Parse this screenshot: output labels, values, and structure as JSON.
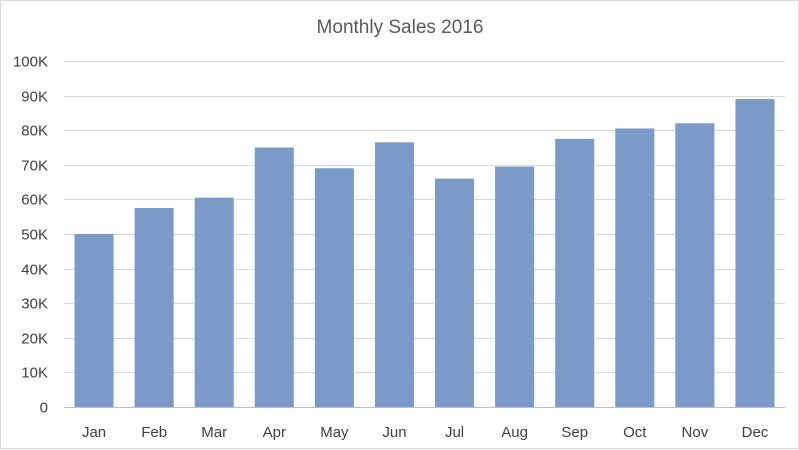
{
  "colors": {
    "bar": "#7b9ac8",
    "grid": "#d9d9d9",
    "axis": "#bfbfbf",
    "text": "#404040",
    "title": "#595959"
  },
  "chart_data": {
    "type": "bar",
    "title": "Monthly Sales 2016",
    "xlabel": "",
    "ylabel": "",
    "categories": [
      "Jan",
      "Feb",
      "Mar",
      "Apr",
      "May",
      "Jun",
      "Jul",
      "Aug",
      "Sep",
      "Oct",
      "Nov",
      "Dec"
    ],
    "values": [
      50000,
      57500,
      60500,
      75000,
      69000,
      76500,
      66000,
      69500,
      77500,
      80500,
      82000,
      89000
    ],
    "ylim": [
      0,
      100000
    ],
    "yticks": [
      0,
      10000,
      20000,
      30000,
      40000,
      50000,
      60000,
      70000,
      80000,
      90000,
      100000
    ],
    "ytick_labels": [
      "0",
      "10K",
      "20K",
      "30K",
      "40K",
      "50K",
      "60K",
      "70K",
      "80K",
      "90K",
      "100K"
    ],
    "grid": true,
    "legend": "none"
  }
}
